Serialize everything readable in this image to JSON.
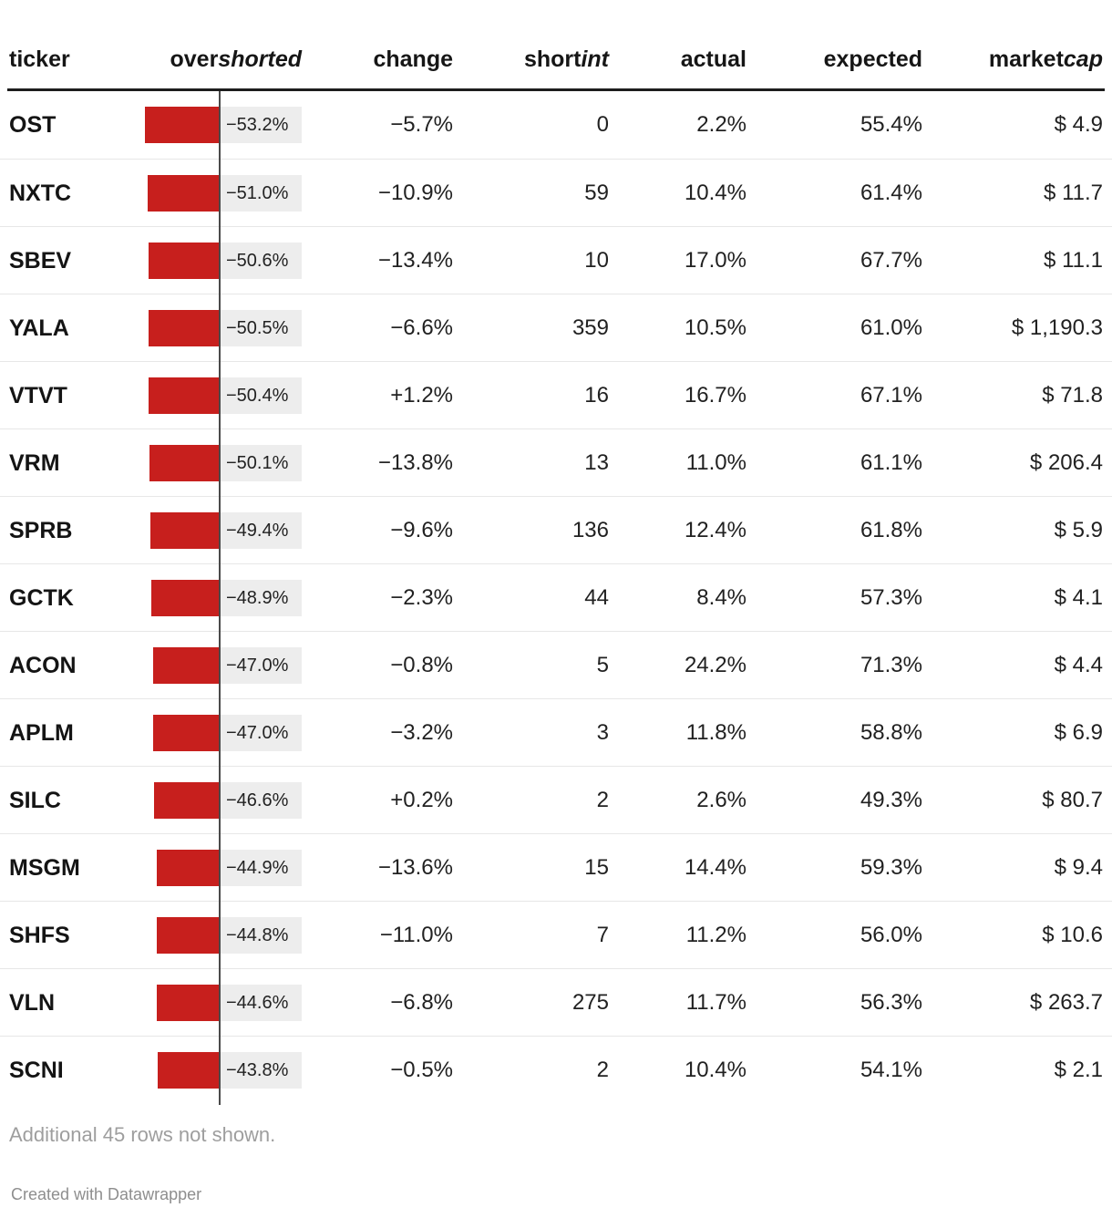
{
  "header": {
    "columns": [
      {
        "text": "ticker",
        "italic": ""
      },
      {
        "text": "over",
        "italic": "shorted"
      },
      {
        "text": "change",
        "italic": ""
      },
      {
        "text": "short",
        "italic": "int"
      },
      {
        "text": "actual",
        "italic": ""
      },
      {
        "text": "expected",
        "italic": ""
      },
      {
        "text": "market",
        "italic": "cap"
      }
    ]
  },
  "chart_data": {
    "type": "table",
    "columns": [
      "ticker",
      "overshorted",
      "change",
      "shortint",
      "actual",
      "expected",
      "marketcap"
    ],
    "bar_column": "overshorted",
    "bar_axis_max_abs": 53.2,
    "bar_color": "#c71f1d",
    "bar_label_bg": "#ededed",
    "rows": [
      {
        "ticker": "OST",
        "overshorted": "−53.2%",
        "overshorted_value": -53.2,
        "change": "−5.7%",
        "shortint": "0",
        "actual": "2.2%",
        "expected": "55.4%",
        "marketcap": "$ 4.9"
      },
      {
        "ticker": "NXTC",
        "overshorted": "−51.0%",
        "overshorted_value": -51.0,
        "change": "−10.9%",
        "shortint": "59",
        "actual": "10.4%",
        "expected": "61.4%",
        "marketcap": "$ 11.7"
      },
      {
        "ticker": "SBEV",
        "overshorted": "−50.6%",
        "overshorted_value": -50.6,
        "change": "−13.4%",
        "shortint": "10",
        "actual": "17.0%",
        "expected": "67.7%",
        "marketcap": "$ 11.1"
      },
      {
        "ticker": "YALA",
        "overshorted": "−50.5%",
        "overshorted_value": -50.5,
        "change": "−6.6%",
        "shortint": "359",
        "actual": "10.5%",
        "expected": "61.0%",
        "marketcap": "$ 1,190.3"
      },
      {
        "ticker": "VTVT",
        "overshorted": "−50.4%",
        "overshorted_value": -50.4,
        "change": "+1.2%",
        "shortint": "16",
        "actual": "16.7%",
        "expected": "67.1%",
        "marketcap": "$ 71.8"
      },
      {
        "ticker": "VRM",
        "overshorted": "−50.1%",
        "overshorted_value": -50.1,
        "change": "−13.8%",
        "shortint": "13",
        "actual": "11.0%",
        "expected": "61.1%",
        "marketcap": "$ 206.4"
      },
      {
        "ticker": "SPRB",
        "overshorted": "−49.4%",
        "overshorted_value": -49.4,
        "change": "−9.6%",
        "shortint": "136",
        "actual": "12.4%",
        "expected": "61.8%",
        "marketcap": "$ 5.9"
      },
      {
        "ticker": "GCTK",
        "overshorted": "−48.9%",
        "overshorted_value": -48.9,
        "change": "−2.3%",
        "shortint": "44",
        "actual": "8.4%",
        "expected": "57.3%",
        "marketcap": "$ 4.1"
      },
      {
        "ticker": "ACON",
        "overshorted": "−47.0%",
        "overshorted_value": -47.0,
        "change": "−0.8%",
        "shortint": "5",
        "actual": "24.2%",
        "expected": "71.3%",
        "marketcap": "$ 4.4"
      },
      {
        "ticker": "APLM",
        "overshorted": "−47.0%",
        "overshorted_value": -47.0,
        "change": "−3.2%",
        "shortint": "3",
        "actual": "11.8%",
        "expected": "58.8%",
        "marketcap": "$ 6.9"
      },
      {
        "ticker": "SILC",
        "overshorted": "−46.6%",
        "overshorted_value": -46.6,
        "change": "+0.2%",
        "shortint": "2",
        "actual": "2.6%",
        "expected": "49.3%",
        "marketcap": "$ 80.7"
      },
      {
        "ticker": "MSGM",
        "overshorted": "−44.9%",
        "overshorted_value": -44.9,
        "change": "−13.6%",
        "shortint": "15",
        "actual": "14.4%",
        "expected": "59.3%",
        "marketcap": "$ 9.4"
      },
      {
        "ticker": "SHFS",
        "overshorted": "−44.8%",
        "overshorted_value": -44.8,
        "change": "−11.0%",
        "shortint": "7",
        "actual": "11.2%",
        "expected": "56.0%",
        "marketcap": "$ 10.6"
      },
      {
        "ticker": "VLN",
        "overshorted": "−44.6%",
        "overshorted_value": -44.6,
        "change": "−6.8%",
        "shortint": "275",
        "actual": "11.7%",
        "expected": "56.3%",
        "marketcap": "$ 263.7"
      },
      {
        "ticker": "SCNI",
        "overshorted": "−43.8%",
        "overshorted_value": -43.8,
        "change": "−0.5%",
        "shortint": "2",
        "actual": "10.4%",
        "expected": "54.1%",
        "marketcap": "$ 2.1"
      }
    ]
  },
  "footer": {
    "note": "Additional 45 rows not shown.",
    "credit": "Created with Datawrapper"
  }
}
